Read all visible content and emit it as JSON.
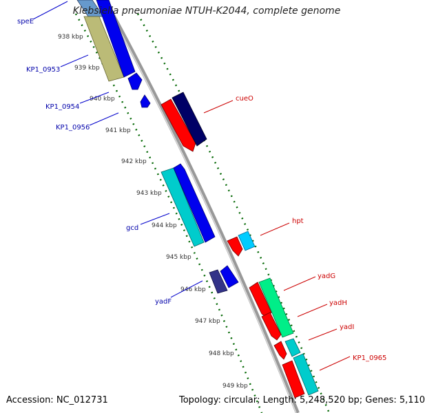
{
  "title": "Klebsiella pneumoniae NTUH-K2044, complete genome",
  "accession": "Accession: NC_012731",
  "topology": "Topology: circular; Length: 5,248,520 bp; Genes: 5,110",
  "ticks": [
    "938 kbp",
    "939 kbp",
    "940 kbp",
    "941 kbp",
    "942 kbp",
    "943 kbp",
    "944 kbp",
    "945 kbp",
    "946 kbp",
    "947 kbp",
    "948 kbp",
    "949 kbp"
  ],
  "left_labels": [
    "speE",
    "KP1_0953",
    "KP1_0954",
    "KP1_0956",
    "gcd",
    "yadF"
  ],
  "right_labels": [
    "cueO",
    "hpt",
    "yadG",
    "yadH",
    "yadI",
    "KP1_0965"
  ],
  "colors": {
    "blue_strand": "#0000ee",
    "red_strand": "#ff0000",
    "navy": "#000066",
    "cyan": "#00cccc",
    "sky": "#00ccff",
    "olive": "#bbbb77",
    "green": "#00ee88",
    "purple": "#333388",
    "tick_green": "#006600",
    "left_label": "#0000aa",
    "right_label": "#cc0000"
  }
}
